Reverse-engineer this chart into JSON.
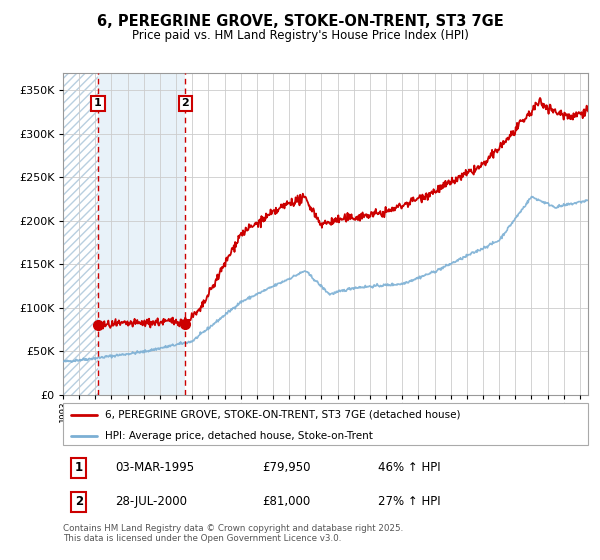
{
  "title": "6, PEREGRINE GROVE, STOKE-ON-TRENT, ST3 7GE",
  "subtitle": "Price paid vs. HM Land Registry's House Price Index (HPI)",
  "ylim": [
    0,
    370000
  ],
  "xlim_start": 1993.0,
  "xlim_end": 2025.5,
  "yticks": [
    0,
    50000,
    100000,
    150000,
    200000,
    250000,
    300000,
    350000
  ],
  "ytick_labels": [
    "£0",
    "£50K",
    "£100K",
    "£150K",
    "£200K",
    "£250K",
    "£300K",
    "£350K"
  ],
  "hpi_color": "#7bafd4",
  "price_color": "#cc0000",
  "point1_date": 1995.17,
  "point1_price": 79950,
  "point2_date": 2000.57,
  "point2_price": 81000,
  "legend_line1": "6, PEREGRINE GROVE, STOKE-ON-TRENT, ST3 7GE (detached house)",
  "legend_line2": "HPI: Average price, detached house, Stoke-on-Trent",
  "table_row1": [
    "1",
    "03-MAR-1995",
    "£79,950",
    "46% ↑ HPI"
  ],
  "table_row2": [
    "2",
    "28-JUL-2000",
    "£81,000",
    "27% ↑ HPI"
  ],
  "footer": "Contains HM Land Registry data © Crown copyright and database right 2025.\nThis data is licensed under the Open Government Licence v3.0.",
  "grid_color": "#cccccc",
  "hatch_fill_color": "#dce9f5",
  "hatch_region2_color": "#e8f2f9"
}
